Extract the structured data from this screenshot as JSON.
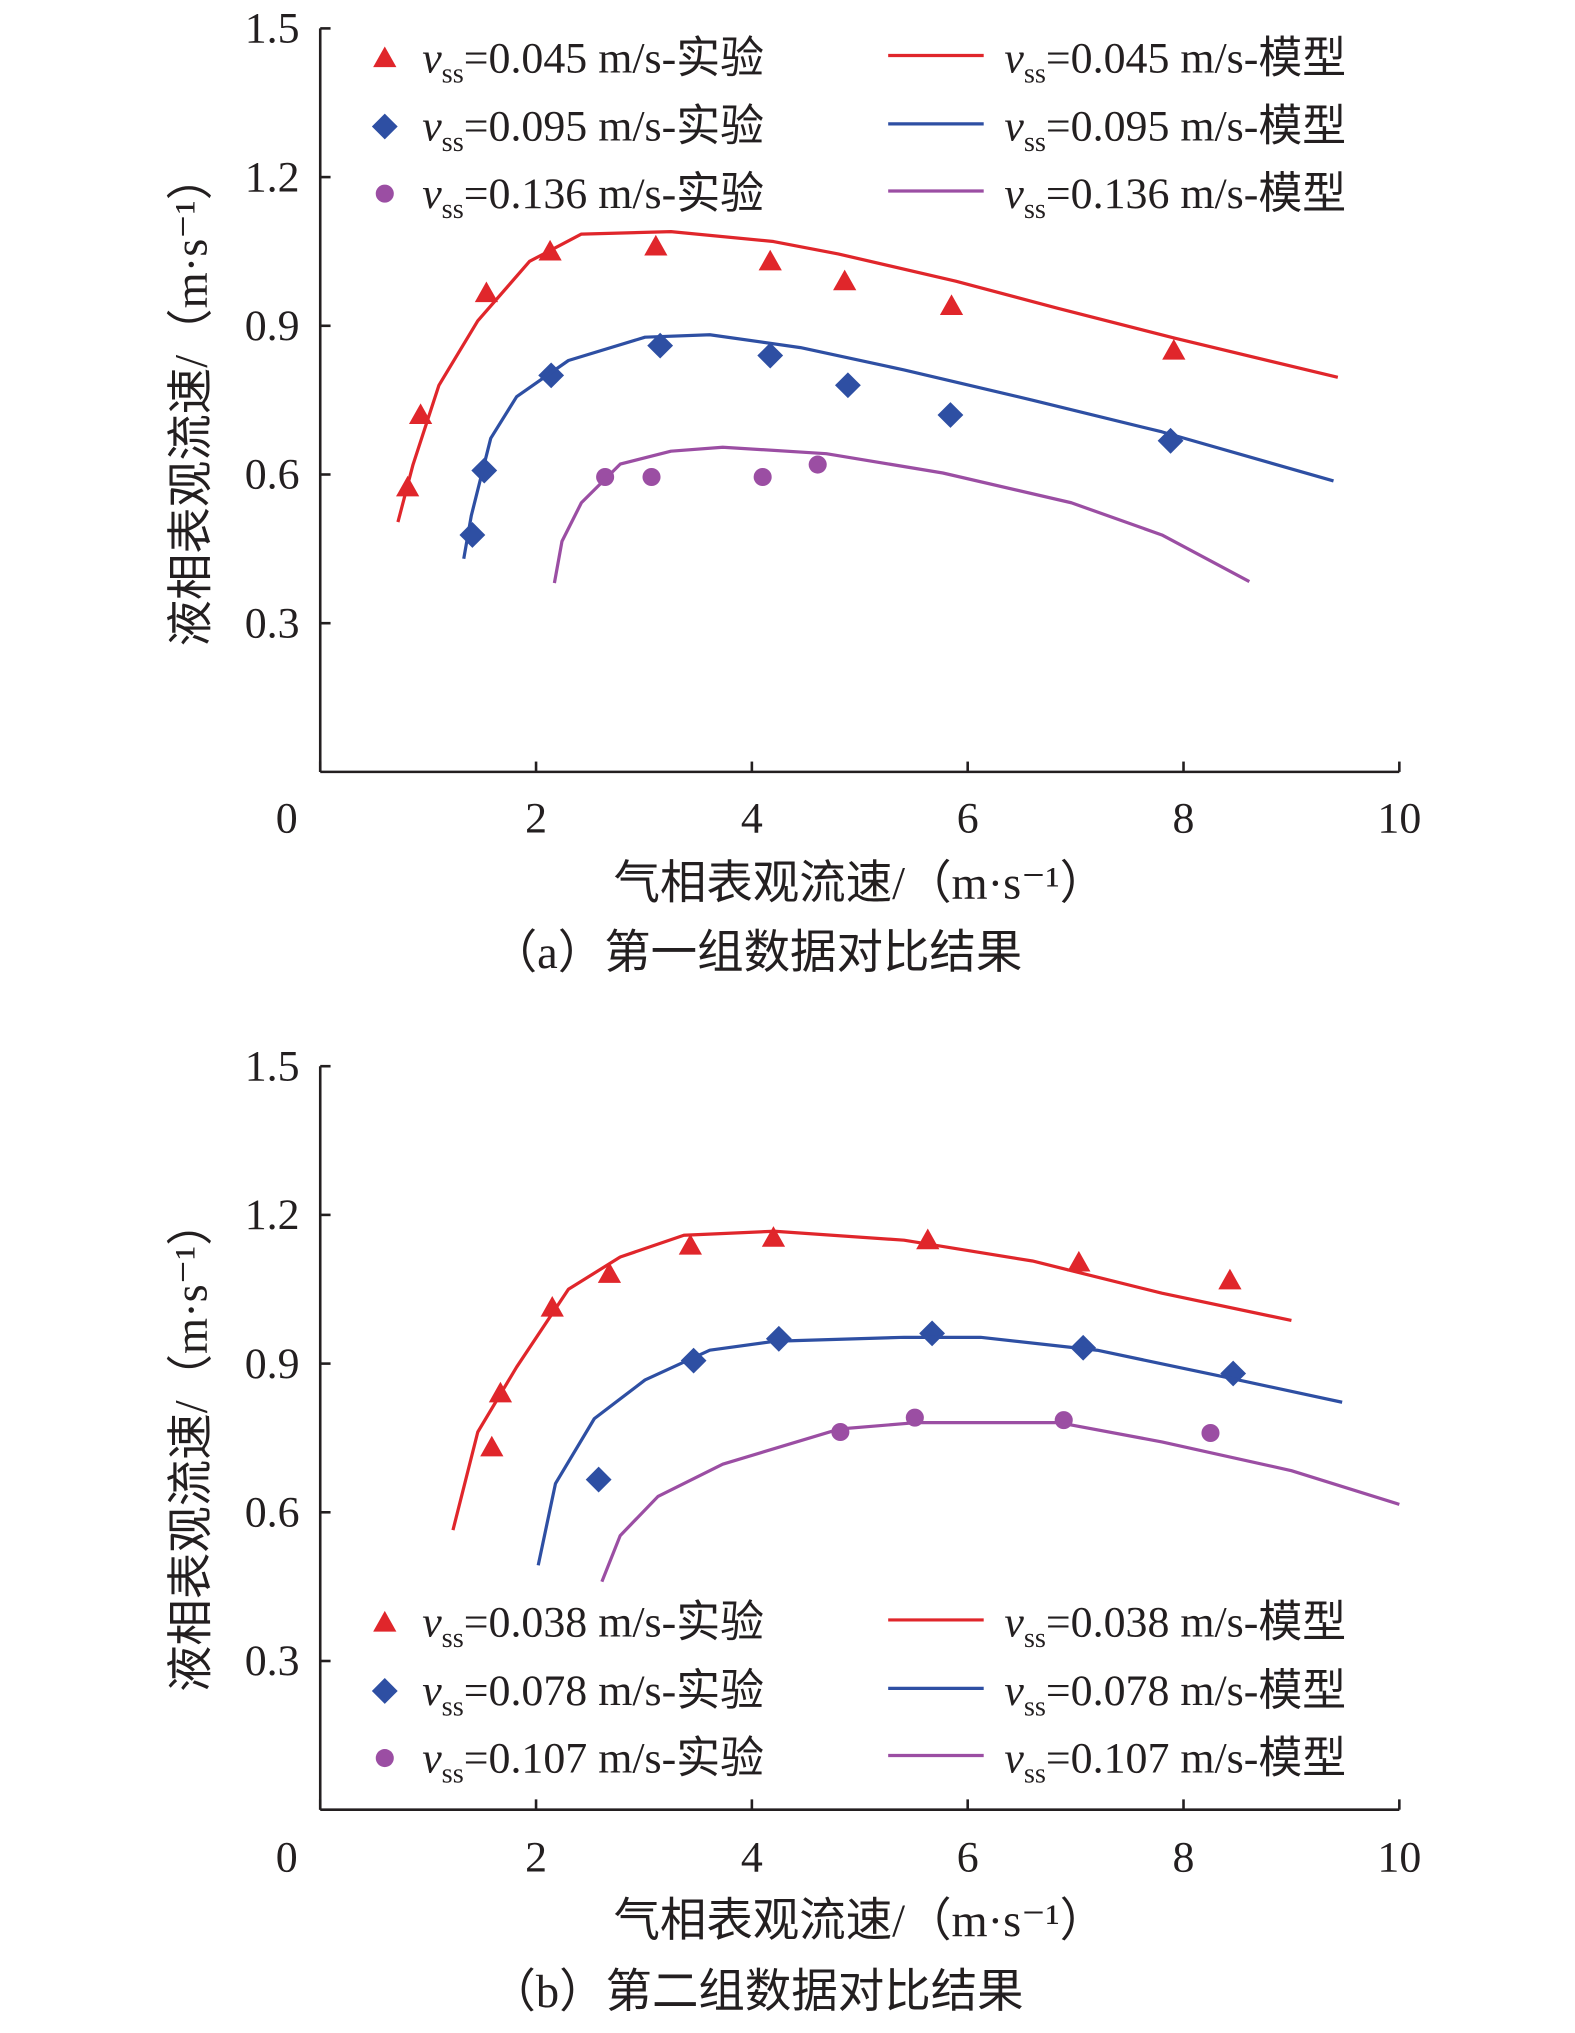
{
  "chart_data": [
    {
      "type": "line",
      "caption": "（a）第一组数据对比结果",
      "xlabel": "气相表观流速/（m·s⁻¹）",
      "ylabel": "液相表观流速/（m·s⁻¹）",
      "xlim": [
        0,
        10
      ],
      "ylim": [
        0,
        1.5
      ],
      "xticks": [
        "0",
        "2",
        "4",
        "6",
        "8",
        "10"
      ],
      "yticks": [
        "0.3",
        "0.6",
        "0.9",
        "1.2",
        "1.5"
      ],
      "legend_position": "top",
      "series": [
        {
          "name": "=0.045 m/s-实验",
          "var": "v",
          "sub": "ss",
          "kind": "scatter",
          "marker": "triangle",
          "color": "#e0262b",
          "x": [
            0.81,
            0.93,
            1.54,
            2.13,
            3.11,
            4.17,
            4.86,
            5.85,
            7.91
          ],
          "y": [
            0.574,
            0.72,
            0.966,
            1.05,
            1.06,
            1.03,
            0.99,
            0.94,
            0.85
          ]
        },
        {
          "name": "=0.095 m/s-实验",
          "var": "v",
          "sub": "ss",
          "kind": "scatter",
          "marker": "diamond",
          "color": "#2e4fa3",
          "x": [
            1.41,
            1.52,
            2.14,
            3.15,
            4.17,
            4.89,
            5.84,
            7.88
          ],
          "y": [
            0.478,
            0.608,
            0.8,
            0.86,
            0.84,
            0.78,
            0.72,
            0.668
          ]
        },
        {
          "name": "=0.136 m/s-实验",
          "var": "v",
          "sub": "ss",
          "kind": "scatter",
          "marker": "circle",
          "color": "#9b4ea3",
          "x": [
            2.64,
            3.07,
            4.1,
            4.61
          ],
          "y": [
            0.595,
            0.595,
            0.595,
            0.62
          ]
        },
        {
          "name": "=0.045 m/s-模型",
          "var": "v",
          "sub": "ss",
          "kind": "line",
          "color": "#e0262b",
          "x": [
            0.72,
            0.86,
            1.1,
            1.46,
            1.94,
            2.42,
            3.25,
            4.2,
            4.8,
            5.89,
            6.84,
            7.92,
            9.43
          ],
          "y": [
            0.504,
            0.62,
            0.78,
            0.91,
            1.03,
            1.085,
            1.09,
            1.07,
            1.045,
            0.99,
            0.935,
            0.875,
            0.796
          ]
        },
        {
          "name": "=0.095 m/s-模型",
          "var": "v",
          "sub": "ss",
          "kind": "line",
          "color": "#2e4fa3",
          "x": [
            1.33,
            1.4,
            1.58,
            1.82,
            2.3,
            3.01,
            3.61,
            4.45,
            5.41,
            6.6,
            7.8,
            9.39
          ],
          "y": [
            0.43,
            0.517,
            0.673,
            0.757,
            0.83,
            0.877,
            0.882,
            0.856,
            0.811,
            0.75,
            0.686,
            0.587
          ]
        },
        {
          "name": "=0.136 m/s-模型",
          "var": "v",
          "sub": "ss",
          "kind": "line",
          "color": "#9b4ea3",
          "x": [
            2.17,
            2.24,
            2.42,
            2.78,
            3.25,
            3.73,
            4.69,
            5.77,
            6.96,
            7.8,
            8.61
          ],
          "y": [
            0.381,
            0.465,
            0.543,
            0.621,
            0.647,
            0.655,
            0.642,
            0.603,
            0.543,
            0.478,
            0.384
          ]
        }
      ]
    },
    {
      "type": "line",
      "caption": "（b）第二组数据对比结果",
      "xlabel": "气相表观流速/（m·s⁻¹）",
      "ylabel": "液相表观流速/（m·s⁻¹）",
      "xlim": [
        0,
        10
      ],
      "ylim": [
        0,
        1.5
      ],
      "xticks": [
        "0",
        "2",
        "4",
        "6",
        "8",
        "10"
      ],
      "yticks": [
        "0.3",
        "0.6",
        "0.9",
        "1.2",
        "1.5"
      ],
      "legend_position": "bottom",
      "series": [
        {
          "name": "=0.038 m/s-实验",
          "var": "v",
          "sub": "ss",
          "kind": "scatter",
          "marker": "triangle",
          "color": "#e0262b",
          "x": [
            1.59,
            1.67,
            2.15,
            2.68,
            3.43,
            4.2,
            5.63,
            7.03,
            8.43
          ],
          "y": [
            0.731,
            0.84,
            1.013,
            1.081,
            1.138,
            1.154,
            1.149,
            1.104,
            1.068
          ]
        },
        {
          "name": "=0.078 m/s-实验",
          "var": "v",
          "sub": "ss",
          "kind": "scatter",
          "marker": "diamond",
          "color": "#2e4fa3",
          "x": [
            2.58,
            3.46,
            4.25,
            5.67,
            7.07,
            8.46
          ],
          "y": [
            0.666,
            0.906,
            0.95,
            0.961,
            0.932,
            0.88
          ]
        },
        {
          "name": "=0.107 m/s-实验",
          "var": "v",
          "sub": "ss",
          "kind": "scatter",
          "marker": "circle",
          "color": "#9b4ea3",
          "x": [
            4.82,
            5.51,
            6.89,
            8.25
          ],
          "y": [
            0.762,
            0.791,
            0.786,
            0.76
          ]
        },
        {
          "name": "=0.038 m/s-模型",
          "var": "v",
          "sub": "ss",
          "kind": "line",
          "color": "#e0262b",
          "x": [
            1.23,
            1.46,
            1.82,
            2.3,
            2.78,
            3.37,
            4.21,
            5.41,
            6.6,
            7.8,
            9.0
          ],
          "y": [
            0.564,
            0.762,
            0.893,
            1.05,
            1.115,
            1.159,
            1.167,
            1.149,
            1.107,
            1.042,
            0.987
          ]
        },
        {
          "name": "=0.078 m/s-模型",
          "var": "v",
          "sub": "ss",
          "kind": "line",
          "color": "#2e4fa3",
          "x": [
            2.02,
            2.18,
            2.54,
            3.01,
            3.61,
            4.21,
            5.41,
            6.12,
            7.2,
            8.4,
            9.47
          ],
          "y": [
            0.493,
            0.658,
            0.789,
            0.867,
            0.927,
            0.945,
            0.953,
            0.953,
            0.927,
            0.872,
            0.822
          ]
        },
        {
          "name": "=0.107 m/s-模型",
          "var": "v",
          "sub": "ss",
          "kind": "line",
          "color": "#9b4ea3",
          "x": [
            2.61,
            2.78,
            3.13,
            3.73,
            4.81,
            5.53,
            6.84,
            7.8,
            9.0,
            10.0
          ],
          "y": [
            0.46,
            0.553,
            0.632,
            0.697,
            0.768,
            0.781,
            0.781,
            0.742,
            0.684,
            0.616
          ]
        }
      ]
    }
  ]
}
